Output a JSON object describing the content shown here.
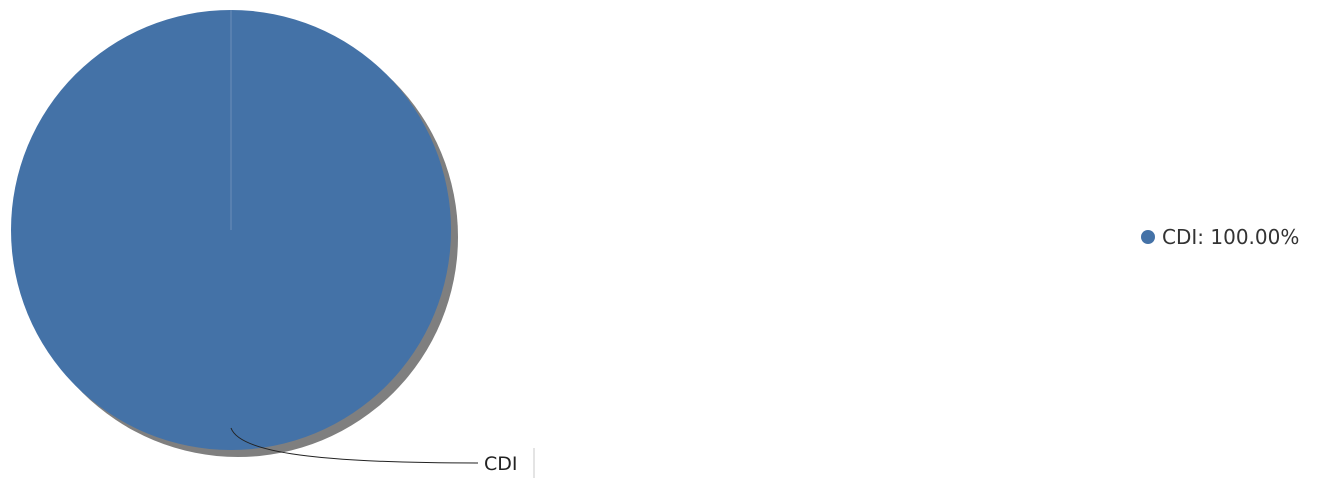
{
  "chart_data": {
    "type": "pie",
    "title": "",
    "slices": [
      {
        "label": "CDI",
        "value": 100.0,
        "percent_label": "100.00%",
        "color": "#4472a7"
      }
    ],
    "legend_position": "right",
    "shadow_color": "#7f7f7f",
    "legend": {
      "items": [
        {
          "label": "CDI",
          "separator": ": ",
          "value_text": "100.00%",
          "color": "#4472a7"
        }
      ]
    }
  }
}
